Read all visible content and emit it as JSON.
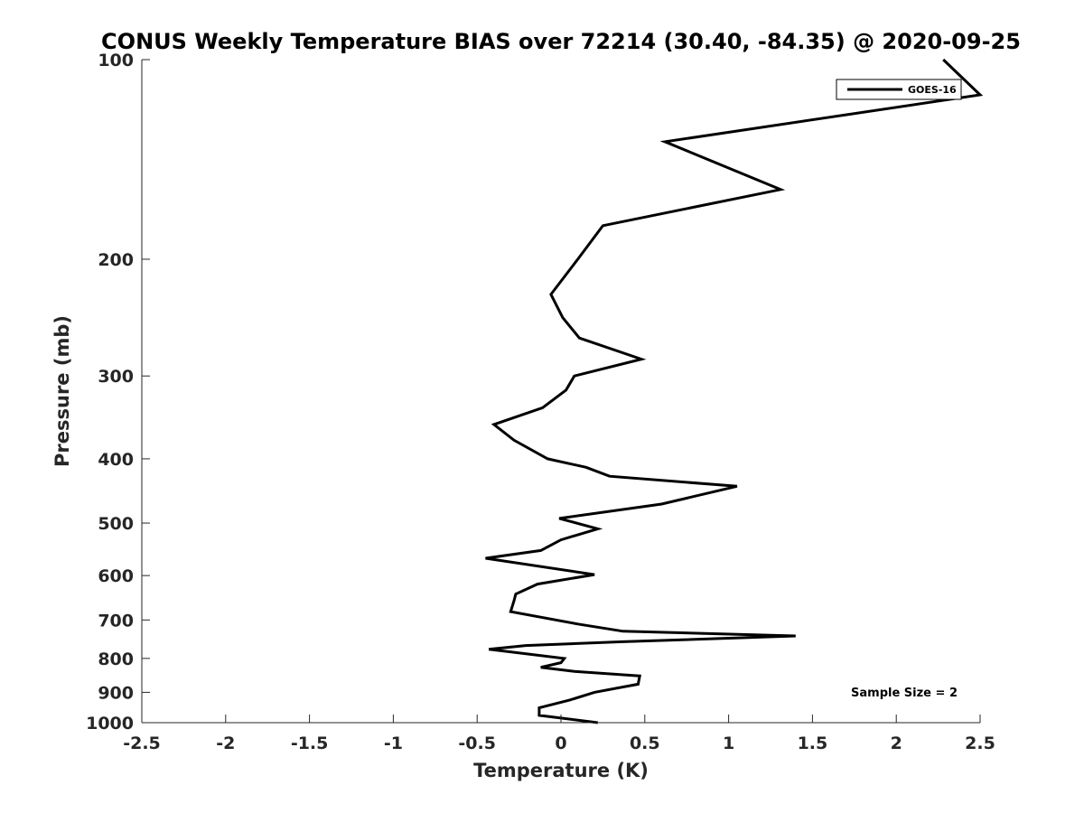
{
  "chart_data": {
    "type": "line",
    "title": "CONUS Weekly Temperature BIAS over 72214 (30.40, -84.35) @ 2020-09-25",
    "xlabel": "Temperature (K)",
    "ylabel": "Pressure (mb)",
    "xlim": [
      -2.5,
      2.5
    ],
    "ylim": [
      1000,
      100
    ],
    "y_scale": "log",
    "y_direction": "reversed",
    "grid": false,
    "x_ticks": [
      {
        "value": -2.5,
        "label": "-2.5"
      },
      {
        "value": -2,
        "label": "-2"
      },
      {
        "value": -1.5,
        "label": "-1.5"
      },
      {
        "value": -1,
        "label": "-1"
      },
      {
        "value": -0.5,
        "label": "-0.5"
      },
      {
        "value": 0,
        "label": "0"
      },
      {
        "value": 0.5,
        "label": "0.5"
      },
      {
        "value": 1,
        "label": "1"
      },
      {
        "value": 1.5,
        "label": "1.5"
      },
      {
        "value": 2,
        "label": "2"
      },
      {
        "value": 2.5,
        "label": "2.5"
      }
    ],
    "y_ticks": [
      {
        "value": 100,
        "label": "100"
      },
      {
        "value": 200,
        "label": "200"
      },
      {
        "value": 300,
        "label": "300"
      },
      {
        "value": 400,
        "label": "400"
      },
      {
        "value": 500,
        "label": "500"
      },
      {
        "value": 600,
        "label": "600"
      },
      {
        "value": 700,
        "label": "700"
      },
      {
        "value": 800,
        "label": "800"
      },
      {
        "value": 900,
        "label": "900"
      },
      {
        "value": 1000,
        "label": "1000"
      }
    ],
    "legend_position": "top-right",
    "series": [
      {
        "name": "GOES-16",
        "color": "#000000",
        "points": [
          [
            0.22,
            1000
          ],
          [
            -0.13,
            975
          ],
          [
            -0.13,
            950
          ],
          [
            0.05,
            925
          ],
          [
            0.2,
            900
          ],
          [
            0.46,
            875
          ],
          [
            0.47,
            850
          ],
          [
            0.08,
            837
          ],
          [
            -0.12,
            825
          ],
          [
            0.0,
            812
          ],
          [
            0.02,
            800
          ],
          [
            -0.43,
            775
          ],
          [
            -0.21,
            765
          ],
          [
            0.37,
            755
          ],
          [
            1.4,
            740
          ],
          [
            0.37,
            728
          ],
          [
            0.1,
            710
          ],
          [
            -0.3,
            680
          ],
          [
            -0.28,
            655
          ],
          [
            -0.27,
            640
          ],
          [
            -0.14,
            618
          ],
          [
            0.2,
            598
          ],
          [
            -0.45,
            565
          ],
          [
            -0.12,
            550
          ],
          [
            0.0,
            530
          ],
          [
            0.22,
            510
          ],
          [
            -0.01,
            492
          ],
          [
            0.6,
            468
          ],
          [
            1.05,
            440
          ],
          [
            0.29,
            425
          ],
          [
            0.15,
            412
          ],
          [
            -0.08,
            400
          ],
          [
            -0.28,
            375
          ],
          [
            -0.4,
            355
          ],
          [
            -0.11,
            335
          ],
          [
            0.03,
            315
          ],
          [
            0.08,
            300
          ],
          [
            0.48,
            283
          ],
          [
            0.11,
            263
          ],
          [
            0.01,
            245
          ],
          [
            -0.06,
            226
          ],
          [
            0.1,
            200
          ],
          [
            0.25,
            178
          ],
          [
            1.31,
            157
          ],
          [
            0.62,
            133
          ],
          [
            2.5,
            113
          ],
          [
            2.28,
            100
          ]
        ]
      }
    ],
    "annotations": [
      {
        "text": "Sample Size = 2",
        "position": "bottom-right"
      }
    ]
  }
}
